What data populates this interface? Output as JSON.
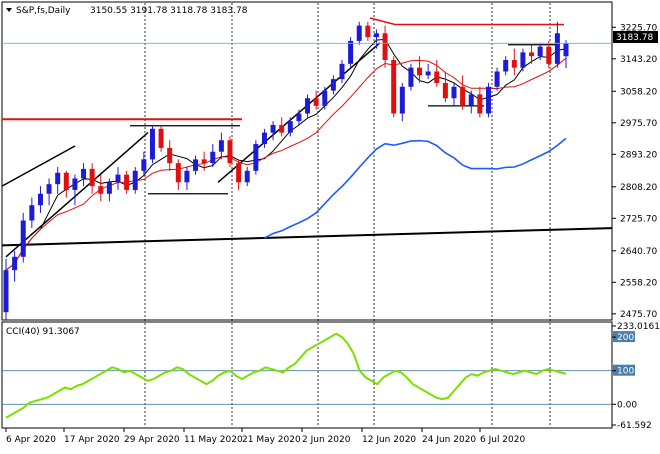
{
  "header": {
    "symbol_tf": "S&P,fs,Daily",
    "ohlc": "3150.55 3191.78 3118.78 3183.78"
  },
  "indicator": {
    "label": "CCI(40) 91.3067"
  },
  "price_tag": "3183.78",
  "colors": {
    "bull": "#1c1cd6",
    "bear": "#e01010",
    "ma_fast": "#000000",
    "ma_slow": "#e01010",
    "ma_long": "#1e5bff",
    "trend_black": "#000000",
    "resistance": "#e01010",
    "cci": "#7be000",
    "level_line": "#4a7fa8"
  },
  "chart_data": [
    {
      "type": "candlestick",
      "title": "S&P,fs,Daily",
      "y_ticks": [
        "3225.70",
        "3143.20",
        "3058.20",
        "2975.70",
        "2893.20",
        "2808.20",
        "2725.70",
        "2640.70",
        "2558.20",
        "2475.70"
      ],
      "ylim": [
        2470,
        3250
      ],
      "x_ticks": [
        "6 Apr 2020",
        "17 Apr 2020",
        "29 Apr 2020",
        "11 May 2020",
        "21 May 2020",
        "2 Jun 2020",
        "12 Jun 2020",
        "24 Jun 2020",
        "6 Jul 2020"
      ],
      "last_price": 3183.78,
      "candles": [
        [
          2480,
          2620,
          2460,
          2590
        ],
        [
          2590,
          2640,
          2560,
          2625
        ],
        [
          2625,
          2740,
          2610,
          2720
        ],
        [
          2720,
          2780,
          2700,
          2760
        ],
        [
          2760,
          2810,
          2740,
          2790
        ],
        [
          2790,
          2830,
          2760,
          2815
        ],
        [
          2815,
          2860,
          2790,
          2845
        ],
        [
          2845,
          2850,
          2780,
          2800
        ],
        [
          2800,
          2840,
          2760,
          2830
        ],
        [
          2830,
          2870,
          2810,
          2855
        ],
        [
          2855,
          2870,
          2790,
          2810
        ],
        [
          2810,
          2840,
          2770,
          2790
        ],
        [
          2790,
          2830,
          2770,
          2820
        ],
        [
          2820,
          2860,
          2800,
          2840
        ],
        [
          2840,
          2850,
          2790,
          2800
        ],
        [
          2800,
          2860,
          2790,
          2850
        ],
        [
          2850,
          2900,
          2840,
          2880
        ],
        [
          2880,
          2970,
          2870,
          2960
        ],
        [
          2960,
          2970,
          2900,
          2910
        ],
        [
          2910,
          2930,
          2850,
          2870
        ],
        [
          2870,
          2880,
          2800,
          2820
        ],
        [
          2820,
          2860,
          2800,
          2850
        ],
        [
          2850,
          2890,
          2840,
          2880
        ],
        [
          2880,
          2900,
          2850,
          2870
        ],
        [
          2870,
          2920,
          2860,
          2900
        ],
        [
          2900,
          2950,
          2880,
          2930
        ],
        [
          2930,
          2940,
          2860,
          2870
        ],
        [
          2870,
          2880,
          2800,
          2820
        ],
        [
          2820,
          2860,
          2810,
          2850
        ],
        [
          2850,
          2930,
          2840,
          2920
        ],
        [
          2920,
          2960,
          2910,
          2950
        ],
        [
          2950,
          2980,
          2930,
          2970
        ],
        [
          2970,
          2990,
          2940,
          2950
        ],
        [
          2950,
          2990,
          2940,
          2980
        ],
        [
          2980,
          3010,
          2970,
          3000
        ],
        [
          3000,
          3050,
          2990,
          3040
        ],
        [
          3040,
          3060,
          3010,
          3020
        ],
        [
          3020,
          3070,
          3010,
          3060
        ],
        [
          3060,
          3100,
          3050,
          3090
        ],
        [
          3090,
          3140,
          3080,
          3130
        ],
        [
          3130,
          3200,
          3120,
          3190
        ],
        [
          3190,
          3240,
          3180,
          3230
        ],
        [
          3230,
          3240,
          3190,
          3200
        ],
        [
          3200,
          3220,
          3170,
          3210
        ],
        [
          3210,
          3230,
          3120,
          3140
        ],
        [
          3140,
          3150,
          2990,
          3000
        ],
        [
          3000,
          3080,
          2980,
          3070
        ],
        [
          3070,
          3130,
          3060,
          3120
        ],
        [
          3120,
          3150,
          3080,
          3100
        ],
        [
          3100,
          3130,
          3090,
          3110
        ],
        [
          3110,
          3140,
          3070,
          3080
        ],
        [
          3080,
          3110,
          3030,
          3040
        ],
        [
          3040,
          3080,
          3020,
          3070
        ],
        [
          3070,
          3100,
          3010,
          3020
        ],
        [
          3020,
          3060,
          3000,
          3050
        ],
        [
          3050,
          3070,
          2990,
          3000
        ],
        [
          3000,
          3080,
          2990,
          3070
        ],
        [
          3070,
          3120,
          3060,
          3110
        ],
        [
          3110,
          3150,
          3100,
          3140
        ],
        [
          3140,
          3170,
          3100,
          3120
        ],
        [
          3120,
          3170,
          3110,
          3160
        ],
        [
          3160,
          3180,
          3130,
          3150
        ],
        [
          3150,
          3185,
          3140,
          3175
        ],
        [
          3175,
          3190,
          3120,
          3130
        ],
        [
          3130,
          3240,
          3120,
          3210
        ],
        [
          3150,
          3192,
          3119,
          3184
        ]
      ]
    },
    {
      "type": "line",
      "title": "CCI(40) 91.3067",
      "y_ticks": [
        "233.0161",
        "200",
        "100",
        "0.00",
        "-61.592"
      ],
      "ylim": [
        -61.592,
        233.0161
      ],
      "levels": [
        200,
        100,
        0,
        -100
      ],
      "values": [
        -40,
        -30,
        -20,
        -10,
        5,
        10,
        15,
        20,
        30,
        40,
        50,
        45,
        55,
        60,
        70,
        80,
        90,
        100,
        110,
        105,
        95,
        100,
        90,
        80,
        70,
        75,
        85,
        95,
        100,
        110,
        105,
        90,
        80,
        70,
        60,
        70,
        85,
        95,
        100,
        85,
        75,
        85,
        95,
        100,
        110,
        105,
        100,
        95,
        110,
        120,
        140,
        160,
        170,
        180,
        190,
        200,
        210,
        200,
        180,
        150,
        100,
        80,
        70,
        60,
        80,
        90,
        100,
        95,
        80,
        60,
        50,
        40,
        30,
        20,
        15,
        20,
        40,
        60,
        80,
        90,
        85,
        95,
        100,
        105,
        100,
        95,
        90,
        95,
        100,
        95,
        90,
        100,
        105,
        100,
        95,
        91
      ]
    }
  ]
}
